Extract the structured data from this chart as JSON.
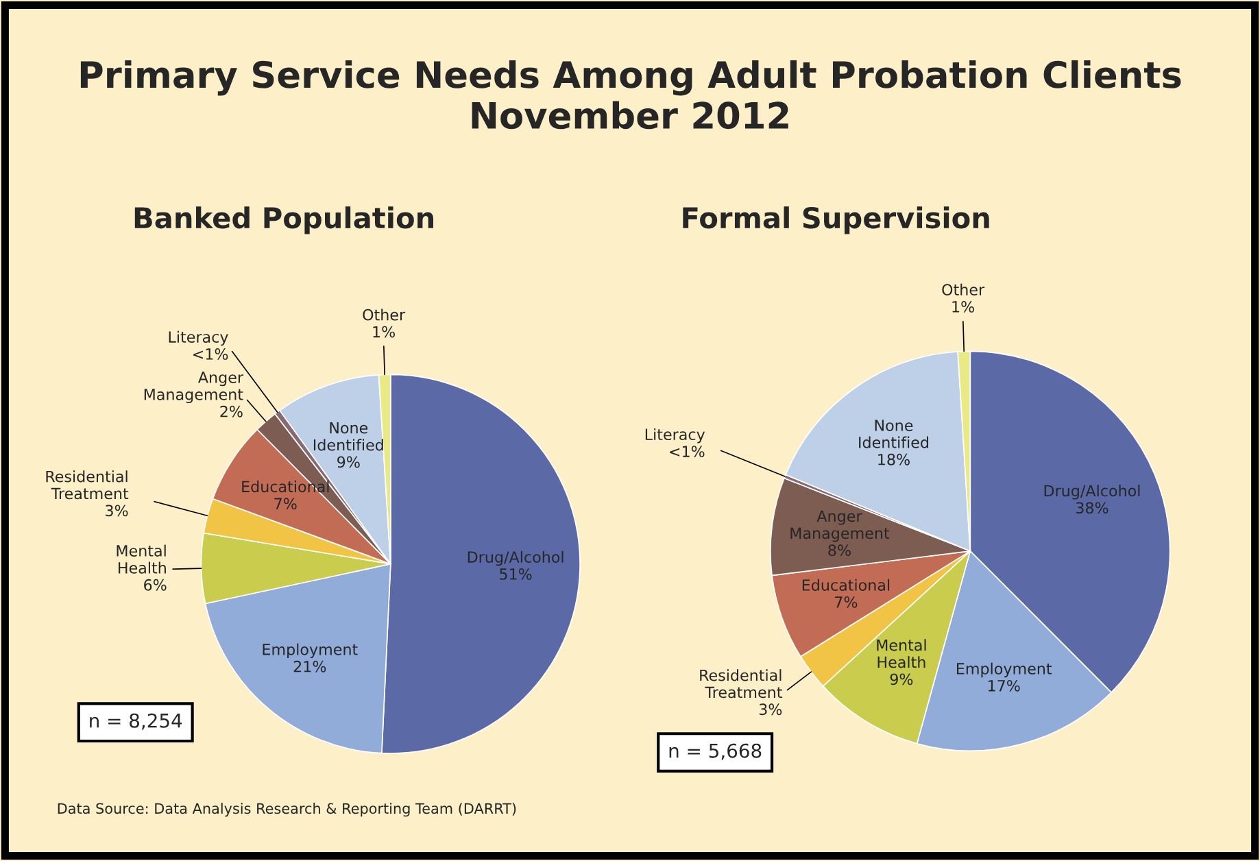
{
  "chart_data": [
    {
      "type": "pie",
      "title": "Primary Service Needs Among Adult Probation Clients\nNovember 2012",
      "subtitle": "Banked Population",
      "categories": [
        "Drug/Alcohol",
        "Employment",
        "Mental\nHealth",
        "Residential\nTreatment",
        "Educational",
        "Anger\nManagement",
        "Literacy",
        "None\nIdentified",
        "Other"
      ],
      "values": [
        51,
        21,
        6,
        3,
        7,
        2,
        0.5,
        9,
        1
      ],
      "value_labels": [
        "51%",
        "21%",
        "6%",
        "3%",
        "7%",
        "2%",
        "<1%",
        "9%",
        "1%"
      ],
      "colors": [
        "#5b6aa6",
        "#92acd9",
        "#c9cc4c",
        "#f1c445",
        "#c36c55",
        "#7d5c52",
        "#8a6a72",
        "#bdd0e8",
        "#e9ea86"
      ],
      "annotations": [
        "n = 8,254",
        "Data Source: Data Analysis Research & Reporting Team (DARRT)"
      ]
    },
    {
      "type": "pie",
      "subtitle": "Formal Supervision",
      "categories": [
        "Drug/Alcohol",
        "Employment",
        "Mental\nHealth",
        "Residential\nTreatment",
        "Educational",
        "Anger\nManagement",
        "Literacy",
        "None\nIdentified",
        "Other"
      ],
      "values": [
        38,
        17,
        9,
        3,
        7,
        8,
        0.3,
        18,
        1
      ],
      "value_labels": [
        "38%",
        "17%",
        "9%",
        "3%",
        "7%",
        "8%",
        "<1%",
        "18%",
        "1%"
      ],
      "colors": [
        "#5b6aa6",
        "#92acd9",
        "#c9cc4c",
        "#f1c445",
        "#c36c55",
        "#7d5c52",
        "#8a6a72",
        "#bdd0e8",
        "#e9ea86"
      ],
      "annotations": [
        "n = 5,668"
      ]
    }
  ]
}
